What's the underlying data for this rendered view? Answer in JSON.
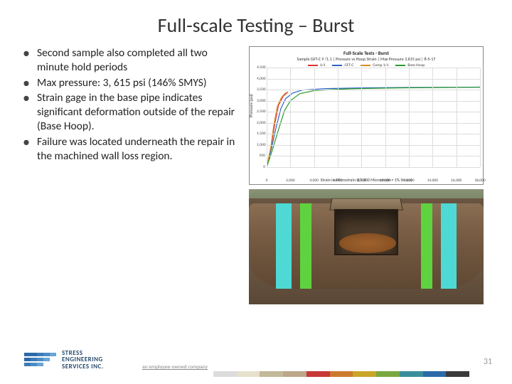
{
  "title": "Full-scale Testing – Burst",
  "bullets": [
    "Second sample also completed all two minute hold periods",
    "Max pressure: 3, 615 psi (146% SMYS)",
    "Strain gage in the base pipe indicates significant deformation outside of the repair (Base Hoop).",
    "Failure was located underneath the repair in the machined wall loss region."
  ],
  "chart": {
    "type": "line",
    "title": "Full-Scale Tests - Burst",
    "subtitle": "Sample GFT-C 9 /1.1 | Pressure vs Hoop Strain | Max Pressure 3,615 psi | 8-5-17",
    "xlabel": "Strain in Microstrain (10,000 Microstrain = 1% Strain)",
    "ylabel": "Pressure (psi)",
    "xlim": [
      0,
      18000
    ],
    "ylim": [
      0,
      4500
    ],
    "xtick_step": 2000,
    "ytick_step": 500,
    "xticks": [
      0,
      2000,
      4000,
      6000,
      8000,
      10000,
      12000,
      14000,
      16000,
      18000
    ],
    "yticks": [
      0,
      500,
      1000,
      1500,
      2000,
      2500,
      3000,
      3500,
      4000,
      4500
    ],
    "background_color": "#ffffff",
    "grid_color": "#dcdcdc",
    "series": [
      {
        "name": "1/1",
        "color": "#e03030",
        "line_width": 1.2,
        "points": [
          [
            0,
            0
          ],
          [
            400,
            1000
          ],
          [
            700,
            2000
          ],
          [
            1000,
            2800
          ],
          [
            1400,
            3200
          ],
          [
            1700,
            3350
          ],
          [
            1800,
            3400
          ]
        ]
      },
      {
        "name": "GFT-C",
        "color": "#2864c8",
        "line_width": 1.2,
        "points": [
          [
            0,
            0
          ],
          [
            400,
            850
          ],
          [
            800,
            1800
          ],
          [
            1200,
            2650
          ],
          [
            1600,
            3100
          ],
          [
            2200,
            3350
          ],
          [
            3000,
            3480
          ],
          [
            5000,
            3550
          ],
          [
            8000,
            3580
          ],
          [
            12000,
            3600
          ],
          [
            16000,
            3610
          ],
          [
            18000,
            3615
          ]
        ]
      },
      {
        "name": "Comp 1/1",
        "color": "#d88c20",
        "line_width": 1.2,
        "points": [
          [
            0,
            0
          ],
          [
            350,
            900
          ],
          [
            600,
            1900
          ],
          [
            900,
            2750
          ],
          [
            1250,
            3150
          ],
          [
            1500,
            3300
          ],
          [
            1650,
            3380
          ]
        ]
      },
      {
        "name": "Base Hoop",
        "color": "#2a9a2a",
        "line_width": 1.2,
        "points": [
          [
            0,
            0
          ],
          [
            500,
            800
          ],
          [
            1000,
            1700
          ],
          [
            1500,
            2550
          ],
          [
            2000,
            3000
          ],
          [
            2800,
            3320
          ],
          [
            4000,
            3460
          ],
          [
            7000,
            3540
          ],
          [
            11000,
            3580
          ],
          [
            15000,
            3600
          ],
          [
            18000,
            3610
          ]
        ]
      }
    ]
  },
  "logo": {
    "name_line1": "STRESS",
    "name_line2": "ENGINEERING",
    "name_line3": "SERVICES INC.",
    "bars": [
      [
        "#2b6aa8",
        "#2b6aa8",
        "#3a7bb8",
        "#4a8cc6",
        "#6aa5d4"
      ],
      [
        "#2b6aa8",
        "#3a7bb8",
        "#4a8cc6",
        "#6aa5d4"
      ],
      [
        "#3a7bb8",
        "#4a8cc6",
        "#6aa5d4"
      ]
    ]
  },
  "tagline": "an employee-owned company",
  "slide_number": "31",
  "color_strip": [
    "#dcdcdc",
    "#e6e0cc",
    "#c2b89a",
    "#bca78a",
    "#c73838",
    "#cc7a2e",
    "#c9a628",
    "#7aa840",
    "#3a8e9c",
    "#2b6aa8",
    "#3a3a3a"
  ]
}
